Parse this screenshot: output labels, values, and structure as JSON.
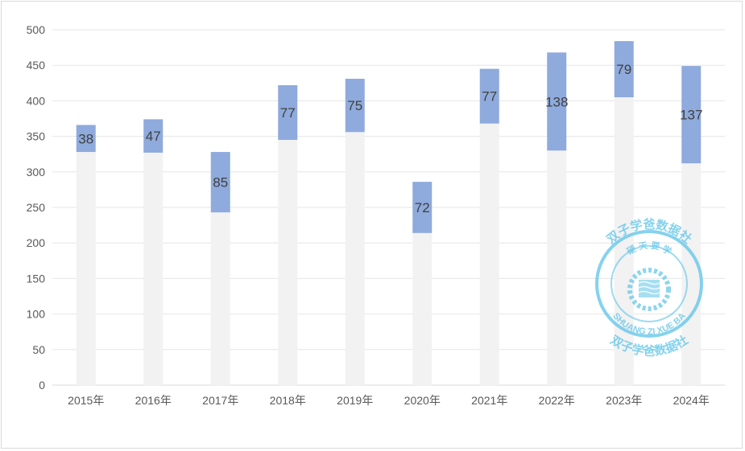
{
  "chart_data": {
    "type": "bar",
    "stacked": true,
    "categories": [
      "2015年",
      "2016年",
      "2017年",
      "2018年",
      "2019年",
      "2020年",
      "2021年",
      "2022年",
      "2023年",
      "2024年"
    ],
    "series": [
      {
        "values": [
          328,
          327,
          243,
          345,
          356,
          214,
          368,
          330,
          405,
          312
        ],
        "color": "#f2f2f2"
      },
      {
        "values": [
          38,
          47,
          85,
          77,
          75,
          72,
          77,
          138,
          79,
          137
        ],
        "color": "#8faadc"
      }
    ],
    "data_labels": [
      "38",
      "47",
      "85",
      "77",
      "75",
      "72",
      "77",
      "138",
      "79",
      "137"
    ],
    "ylim": [
      0,
      500
    ],
    "yticks": [
      0,
      50,
      100,
      150,
      200,
      250,
      300,
      350,
      400,
      450,
      500
    ],
    "grid": true
  },
  "watermark": {
    "top_text": "双子学爸数据社",
    "inner_text": "硬 天 要 学",
    "latin_text": "SHUANG ZI XUE BA",
    "bottom_text": "双子学爸数据社",
    "color": "#5cc3e8"
  }
}
